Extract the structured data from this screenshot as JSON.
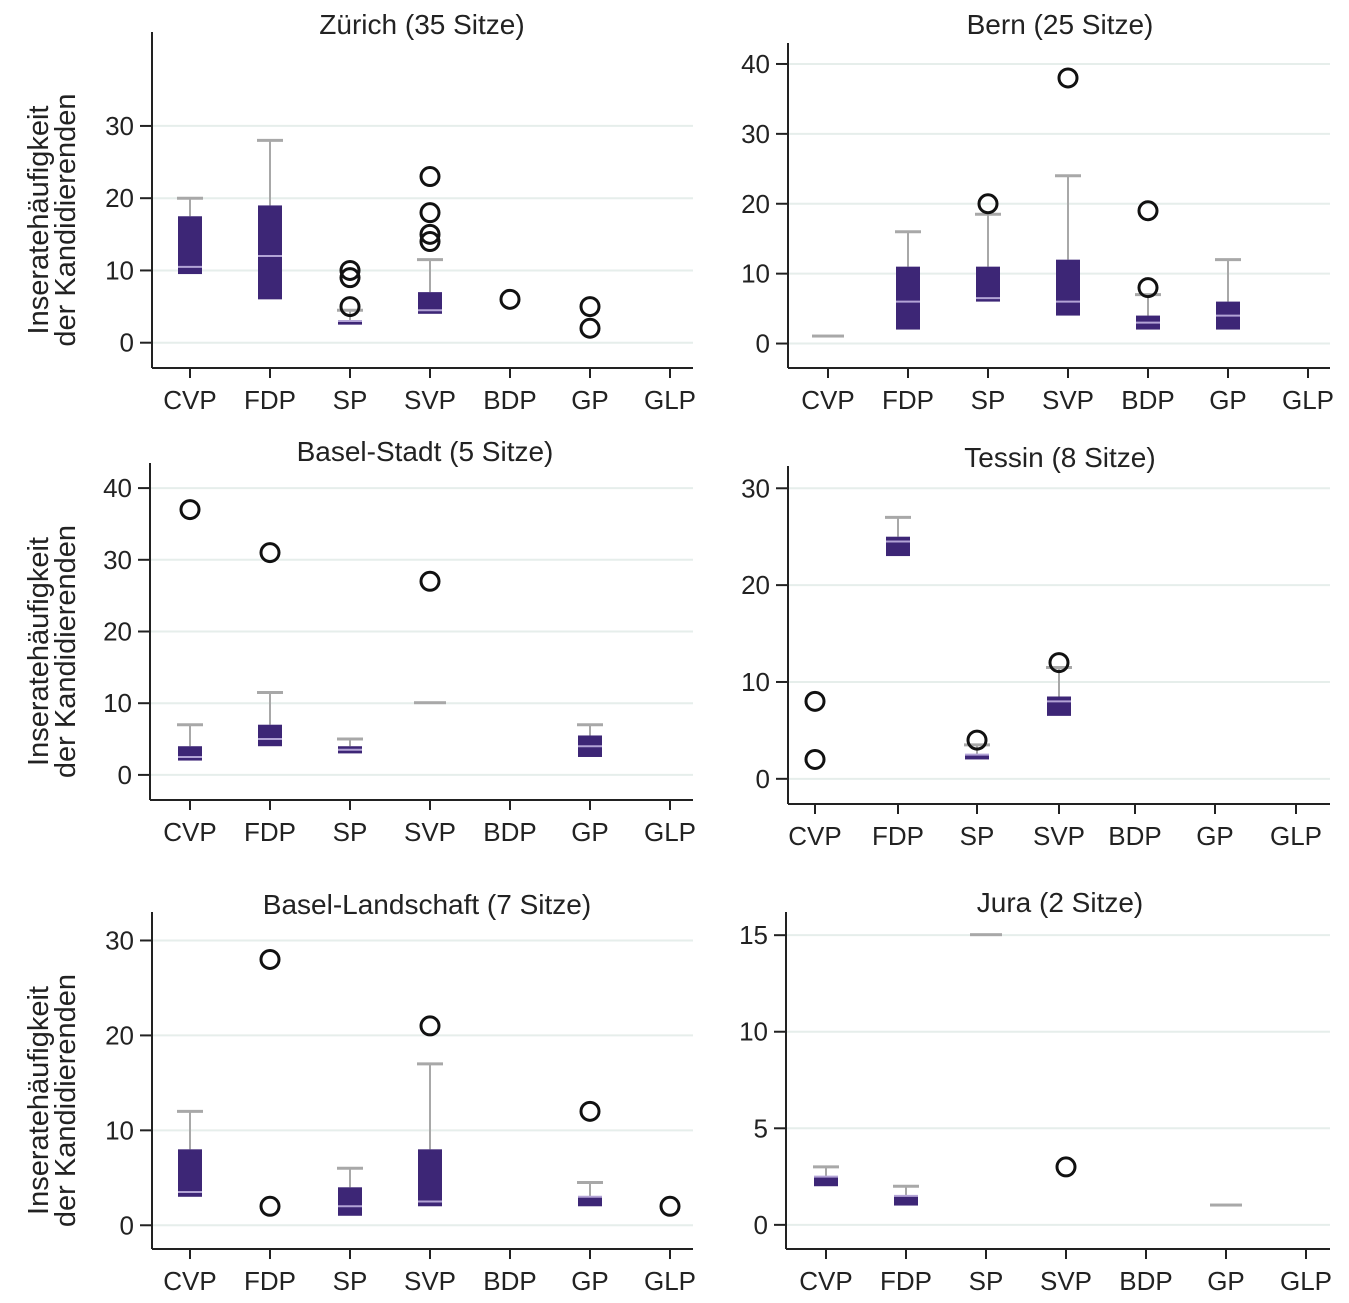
{
  "colors": {
    "box": "#3d2676",
    "median": "#b3a4d6",
    "whisker": "#a8a8a8",
    "grid": "#e6eeeb",
    "axis": "#222222",
    "outlier": "#111111"
  },
  "chart_data": [
    {
      "type": "box",
      "title": "Zürich (35 Sitze)",
      "ylabel": "Inseratehäufigkeit\nder Kandidierenden",
      "categories": [
        "CVP",
        "FDP",
        "SP",
        "SVP",
        "BDP",
        "GP",
        "GLP"
      ],
      "ylim": [
        -3.5,
        43
      ],
      "yticks": [
        0,
        10,
        20,
        30
      ],
      "boxes": [
        {
          "category": "CVP",
          "lower_whisker": 9.5,
          "q1": 9.5,
          "median": 10.5,
          "q3": 17.5,
          "upper_whisker": 20,
          "outliers": []
        },
        {
          "category": "FDP",
          "lower_whisker": 6,
          "q1": 6,
          "median": 12,
          "q3": 19,
          "upper_whisker": 28,
          "outliers": []
        },
        {
          "category": "SP",
          "lower_whisker": 2.5,
          "q1": 2.5,
          "median": 3,
          "q3": 3,
          "upper_whisker": 4.5,
          "outliers": [
            5,
            9,
            10
          ]
        },
        {
          "category": "SVP",
          "lower_whisker": 4,
          "q1": 4,
          "median": 4.5,
          "q3": 7,
          "upper_whisker": 11.5,
          "outliers": [
            14,
            15,
            18,
            23
          ]
        },
        {
          "category": "BDP",
          "outliers": [
            6
          ]
        },
        {
          "category": "GP",
          "outliers": [
            2,
            5
          ]
        },
        {
          "category": "GLP",
          "outliers": []
        }
      ]
    },
    {
      "type": "box",
      "title": "Bern (25 Sitze)",
      "categories": [
        "CVP",
        "FDP",
        "SP",
        "SVP",
        "BDP",
        "GP",
        "GLP"
      ],
      "ylim": [
        -3.5,
        43
      ],
      "yticks": [
        0,
        10,
        20,
        30,
        40
      ],
      "boxes": [
        {
          "category": "CVP",
          "lower_whisker": 1,
          "q1": 1,
          "median": 1,
          "q3": 1,
          "upper_whisker": 1,
          "outliers": []
        },
        {
          "category": "FDP",
          "lower_whisker": 2,
          "q1": 2,
          "median": 6,
          "q3": 11,
          "upper_whisker": 16,
          "outliers": []
        },
        {
          "category": "SP",
          "lower_whisker": 6,
          "q1": 6,
          "median": 6.5,
          "q3": 11,
          "upper_whisker": 18.5,
          "outliers": [
            20
          ]
        },
        {
          "category": "SVP",
          "lower_whisker": 4,
          "q1": 4,
          "median": 6,
          "q3": 12,
          "upper_whisker": 24,
          "outliers": [
            38
          ]
        },
        {
          "category": "BDP",
          "lower_whisker": 2,
          "q1": 2,
          "median": 3,
          "q3": 4,
          "upper_whisker": 7,
          "outliers": [
            8,
            19
          ]
        },
        {
          "category": "GP",
          "lower_whisker": 2,
          "q1": 2,
          "median": 4,
          "q3": 6,
          "upper_whisker": 12,
          "outliers": []
        },
        {
          "category": "GLP",
          "outliers": []
        }
      ]
    },
    {
      "type": "box",
      "title": "Basel-Stadt (5 Sitze)",
      "ylabel": "Inseratehäufigkeit\nder Kandidierenden",
      "categories": [
        "CVP",
        "FDP",
        "SP",
        "SVP",
        "BDP",
        "GP",
        "GLP"
      ],
      "ylim": [
        -3.5,
        43.5
      ],
      "yticks": [
        0,
        10,
        20,
        30,
        40
      ],
      "boxes": [
        {
          "category": "CVP",
          "lower_whisker": 2,
          "q1": 2,
          "median": 2.5,
          "q3": 4,
          "upper_whisker": 7,
          "outliers": [
            37
          ]
        },
        {
          "category": "FDP",
          "lower_whisker": 4,
          "q1": 4,
          "median": 5,
          "q3": 7,
          "upper_whisker": 11.5,
          "outliers": [
            31
          ]
        },
        {
          "category": "SP",
          "lower_whisker": 3,
          "q1": 3,
          "median": 3.5,
          "q3": 4,
          "upper_whisker": 5,
          "outliers": []
        },
        {
          "category": "SVP",
          "lower_whisker": 10,
          "q1": 10,
          "median": 10,
          "q3": 10,
          "upper_whisker": 10,
          "outliers": [
            27
          ]
        },
        {
          "category": "BDP",
          "outliers": []
        },
        {
          "category": "GP",
          "lower_whisker": 2.5,
          "q1": 2.5,
          "median": 4,
          "q3": 5.5,
          "upper_whisker": 7,
          "outliers": []
        },
        {
          "category": "GLP",
          "outliers": []
        }
      ]
    },
    {
      "type": "box",
      "title": "Tessin (8 Sitze)",
      "categories": [
        "CVP",
        "FDP",
        "SP",
        "SVP",
        "BDP",
        "GP",
        "GLP"
      ],
      "ylim": [
        -2.6,
        32.3
      ],
      "yticks": [
        0,
        10,
        20,
        30
      ],
      "boxes": [
        {
          "category": "CVP",
          "outliers": [
            2,
            8
          ]
        },
        {
          "category": "FDP",
          "lower_whisker": 23,
          "q1": 23,
          "median": 24.5,
          "q3": 25,
          "upper_whisker": 27,
          "outliers": []
        },
        {
          "category": "SP",
          "lower_whisker": 2,
          "q1": 2,
          "median": 2.5,
          "q3": 2.5,
          "upper_whisker": 3.5,
          "outliers": [
            4
          ]
        },
        {
          "category": "SVP",
          "lower_whisker": 6.5,
          "q1": 6.5,
          "median": 8,
          "q3": 8.5,
          "upper_whisker": 11.5,
          "outliers": [
            12
          ]
        },
        {
          "category": "BDP",
          "outliers": []
        },
        {
          "category": "GP",
          "outliers": []
        },
        {
          "category": "GLP",
          "outliers": []
        }
      ]
    },
    {
      "type": "box",
      "title": "Basel-Landschaft (7 Sitze)",
      "ylabel": "Inseratehäufigkeit\nder Kandidierenden",
      "categories": [
        "CVP",
        "FDP",
        "SP",
        "SVP",
        "BDP",
        "GP",
        "GLP"
      ],
      "ylim": [
        -2.5,
        33
      ],
      "yticks": [
        0,
        10,
        20,
        30
      ],
      "boxes": [
        {
          "category": "CVP",
          "lower_whisker": 3,
          "q1": 3,
          "median": 3.5,
          "q3": 8,
          "upper_whisker": 12,
          "outliers": []
        },
        {
          "category": "FDP",
          "outliers": [
            2,
            28
          ]
        },
        {
          "category": "SP",
          "lower_whisker": 1,
          "q1": 1,
          "median": 2,
          "q3": 4,
          "upper_whisker": 6,
          "outliers": []
        },
        {
          "category": "SVP",
          "lower_whisker": 2,
          "q1": 2,
          "median": 2.5,
          "q3": 8,
          "upper_whisker": 17,
          "outliers": [
            21
          ]
        },
        {
          "category": "BDP",
          "outliers": []
        },
        {
          "category": "GP",
          "lower_whisker": 2,
          "q1": 2,
          "median": 3,
          "q3": 3,
          "upper_whisker": 4.5,
          "outliers": [
            12
          ]
        },
        {
          "category": "GLP",
          "outliers": [
            2
          ]
        }
      ]
    },
    {
      "type": "box",
      "title": "Jura (2 Sitze)",
      "categories": [
        "CVP",
        "FDP",
        "SP",
        "SVP",
        "BDP",
        "GP",
        "GLP"
      ],
      "ylim": [
        -1.25,
        16.2
      ],
      "yticks": [
        0,
        5,
        10,
        15
      ],
      "boxes": [
        {
          "category": "CVP",
          "lower_whisker": 2,
          "q1": 2,
          "median": 2.5,
          "q3": 2.5,
          "upper_whisker": 3,
          "outliers": []
        },
        {
          "category": "FDP",
          "lower_whisker": 1,
          "q1": 1,
          "median": 1.5,
          "q3": 1.5,
          "upper_whisker": 2,
          "outliers": []
        },
        {
          "category": "SP",
          "lower_whisker": 15,
          "q1": 15,
          "median": 15,
          "q3": 15,
          "upper_whisker": 15,
          "outliers": []
        },
        {
          "category": "SVP",
          "outliers": [
            3
          ]
        },
        {
          "category": "BDP",
          "outliers": []
        },
        {
          "category": "GP",
          "lower_whisker": 1,
          "q1": 1,
          "median": 1,
          "q3": 1,
          "upper_whisker": 1,
          "outliers": []
        },
        {
          "category": "GLP",
          "outliers": []
        }
      ]
    }
  ]
}
